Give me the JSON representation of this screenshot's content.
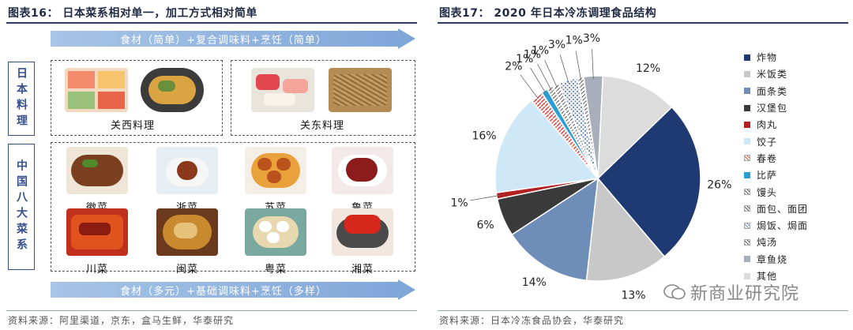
{
  "left": {
    "title": "图表16：  日本菜系相对单一，加工方式相对简单",
    "top_arrow": "食材（简单）+复合调味料+烹饪（简单）",
    "bottom_arrow": "食材（多元）+基础调味料+烹饪（多样）",
    "japan_label": "日本料理",
    "china_label": "中国八大菜系",
    "kansai": "关西料理",
    "kanto": "关东料理",
    "dishes": [
      "徽菜",
      "浙菜",
      "苏菜",
      "鲁菜",
      "川菜",
      "闽菜",
      "粤菜",
      "湘菜"
    ],
    "source": "资料来源：阿里渠道，京东，盒马生鲜，华泰研究"
  },
  "right": {
    "title": "图表17：  2020 年日本冷冻调理食品结构",
    "source": "资料来源：日本冷冻食品协会，华泰研究",
    "watermark": "新商业研究院"
  },
  "chart_data": {
    "type": "pie",
    "title": "2020 年日本冷冻调理食品结构",
    "legend_position": "right",
    "series": [
      {
        "name": "炸物",
        "value": 26,
        "label": "26%",
        "color": "#1f3a73",
        "pattern": "solid"
      },
      {
        "name": "米饭类",
        "value": 13,
        "label": "13%",
        "color": "#c8c8c8",
        "pattern": "solid"
      },
      {
        "name": "面条类",
        "value": 14,
        "label": "14%",
        "color": "#6f8db9",
        "pattern": "solid"
      },
      {
        "name": "汉堡包",
        "value": 6,
        "label": "6%",
        "color": "#3a3a3a",
        "pattern": "solid"
      },
      {
        "name": "肉丸",
        "value": 1,
        "label": "1%",
        "color": "#b22222",
        "pattern": "solid"
      },
      {
        "name": "饺子",
        "value": 16,
        "label": "16%",
        "color": "#cfe8f7",
        "pattern": "solid"
      },
      {
        "name": "春卷",
        "value": 2,
        "label": "2%",
        "color": "#e0504a",
        "pattern": "hatch"
      },
      {
        "name": "比萨",
        "value": 1,
        "label": "1%",
        "color": "#2a9fd6",
        "pattern": "solid"
      },
      {
        "name": "馒头",
        "value": 1,
        "label": "1%",
        "color": "#1f3a73",
        "pattern": "hatch"
      },
      {
        "name": "面包、面团",
        "value": 1,
        "label": "1%",
        "color": "#9aa0a8",
        "pattern": "hatch"
      },
      {
        "name": "焗饭、焗面",
        "value": 3,
        "label": "3%",
        "color": "#6f8db9",
        "pattern": "dots"
      },
      {
        "name": "炖汤",
        "value": 1,
        "label": "1%",
        "color": "#8fa3c7",
        "pattern": "hatch"
      },
      {
        "name": "章鱼烧",
        "value": 3,
        "label": "3%",
        "color": "#a9aebb",
        "pattern": "solid"
      },
      {
        "name": "其他",
        "value": 12,
        "label": "12%",
        "color": "#dcdcdc",
        "pattern": "solid"
      }
    ]
  }
}
